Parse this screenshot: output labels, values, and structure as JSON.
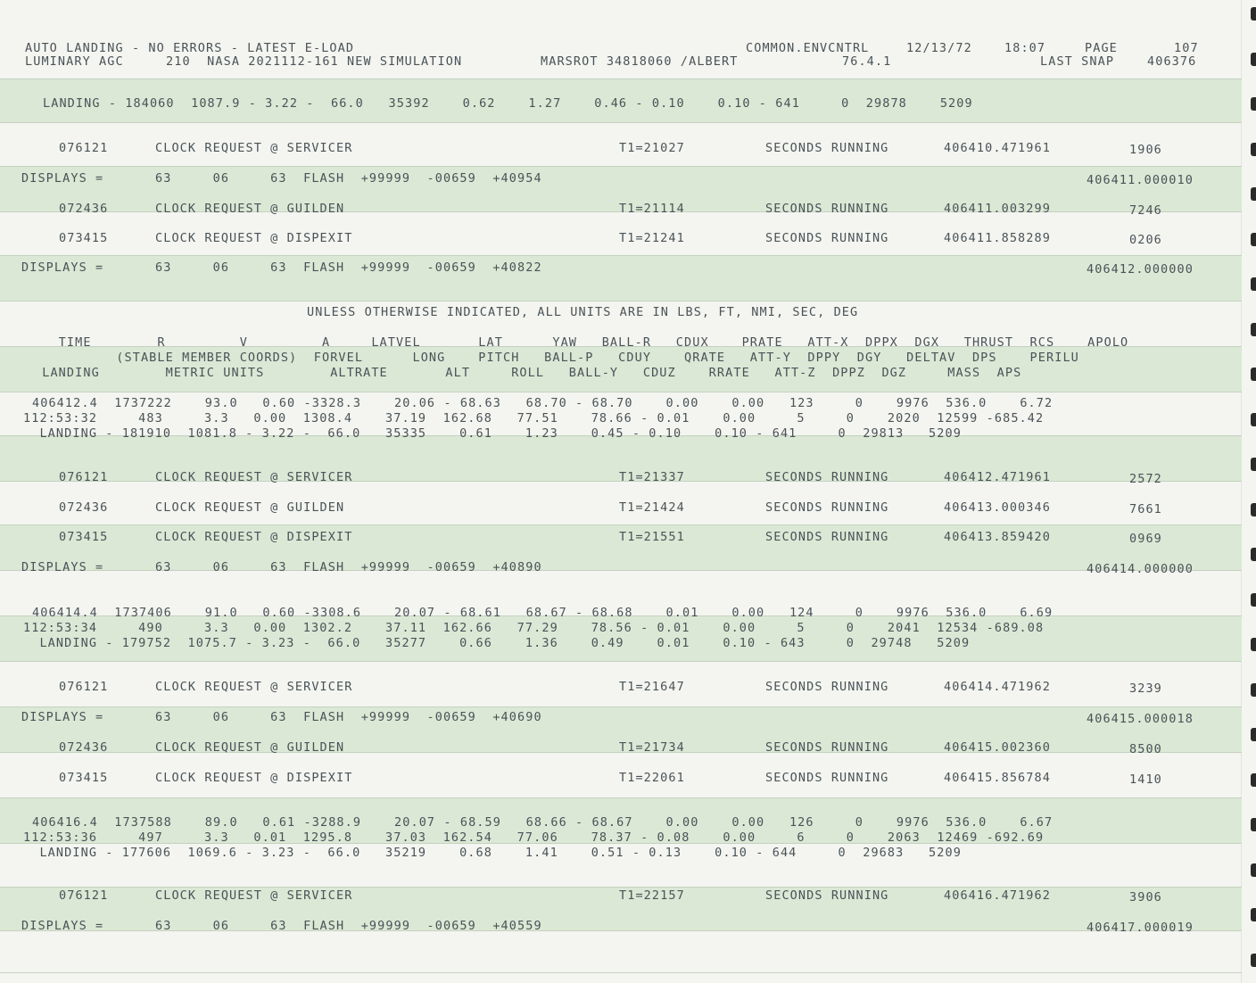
{
  "header": {
    "line1_left": "AUTO LANDING - NO ERRORS - LATEST E-LOAD",
    "line1_right": "COMMON.ENVCNTRL",
    "date": "12/13/72",
    "time": "18:07",
    "page_label": "PAGE",
    "page_no": "107",
    "line2_left": "LUMINARY AGC",
    "line2_mid": "210  NASA 2021112-161 NEW SIMULATION",
    "line2_mid2": "MARSROT 34818060 /ALBERT",
    "version": "76.4.1",
    "snap_label": "LAST SNAP",
    "snap_no": "406376"
  },
  "landing_top": "LANDING - 184060  1087.9 - 3.22 -  66.0   35392    0.62    1.27    0.46 - 0.10    0.10 - 641     0  29878    5209",
  "block1": [
    {
      "id": "076121",
      "text": "CLOCK REQUEST @ SERVICER",
      "t1": "T1=21027",
      "running": "SECONDS RUNNING",
      "sec": "406410.471961",
      "num": "1906"
    },
    {
      "type": "displays",
      "label": "DISPLAYS =",
      "vals": "63     06     63  FLASH  +99999  -00659  +40954",
      "end": "406411.000010"
    },
    {
      "id": "072436",
      "text": "CLOCK REQUEST @ GUILDEN",
      "t1": "T1=21114",
      "running": "SECONDS RUNNING",
      "sec": "406411.003299",
      "num": "7246"
    },
    {
      "id": "073415",
      "text": "CLOCK REQUEST @ DISPEXIT",
      "t1": "T1=21241",
      "running": "SECONDS RUNNING",
      "sec": "406411.858289",
      "num": "0206"
    },
    {
      "type": "displays",
      "label": "DISPLAYS =",
      "vals": "63     06     63  FLASH  +99999  -00659  +40822",
      "end": "406412.000000"
    }
  ],
  "units_note": "UNLESS OTHERWISE INDICATED, ALL UNITS ARE IN LBS, FT, NMI, SEC, DEG",
  "col_headers": [
    "   TIME        R         V         A     LATVEL       LAT      YAW   BALL-R   CDUX    PRATE   ATT-X  DPPX  DGX   THRUST  RCS    APOLO",
    "          (STABLE MEMBER COORDS)  FORVEL      LONG    PITCH   BALL-P   CDUY    QRATE   ATT-Y  DPPY  DGY   DELTAV  DPS    PERILU",
    " LANDING        METRIC UNITS        ALTRATE       ALT     ROLL   BALL-Y   CDUZ    RRATE   ATT-Z  DPPZ  DGZ     MASS  APS"
  ],
  "state1": [
    "406412.4  1737222    93.0   0.60 -3328.3    20.06 - 68.63   68.70 - 68.70    0.00    0.00   123     0    9976  536.0    6.72",
    "112:53:32     483     3.3   0.00  1308.4    37.19  162.68   77.51    78.66 - 0.01    0.00     5     0    2020  12599 -685.42",
    "  LANDING - 181910  1081.8 - 3.22 -  66.0   35335    0.61    1.23    0.45 - 0.10    0.10 - 641     0  29813   5209"
  ],
  "block2": [
    {
      "id": "076121",
      "text": "CLOCK REQUEST @ SERVICER",
      "t1": "T1=21337",
      "running": "SECONDS RUNNING",
      "sec": "406412.471961",
      "num": "2572"
    },
    {
      "id": "072436",
      "text": "CLOCK REQUEST @ GUILDEN",
      "t1": "T1=21424",
      "running": "SECONDS RUNNING",
      "sec": "406413.000346",
      "num": "7661"
    },
    {
      "id": "073415",
      "text": "CLOCK REQUEST @ DISPEXIT",
      "t1": "T1=21551",
      "running": "SECONDS RUNNING",
      "sec": "406413.859420",
      "num": "0969"
    },
    {
      "type": "displays",
      "label": "DISPLAYS =",
      "vals": "63     06     63  FLASH  +99999  -00659  +40890",
      "end": "406414.000000"
    }
  ],
  "state2": [
    "406414.4  1737406    91.0   0.60 -3308.6    20.07 - 68.61   68.67 - 68.68    0.01    0.00   124     0    9976  536.0    6.69",
    "112:53:34     490     3.3   0.00  1302.2    37.11  162.66   77.29    78.56 - 0.01    0.00     5     0    2041  12534 -689.08",
    "  LANDING - 179752  1075.7 - 3.23 -  66.0   35277    0.66    1.36    0.49    0.01    0.10 - 643     0  29748   5209"
  ],
  "block3": [
    {
      "id": "076121",
      "text": "CLOCK REQUEST @ SERVICER",
      "t1": "T1=21647",
      "running": "SECONDS RUNNING",
      "sec": "406414.471962",
      "num": "3239"
    },
    {
      "type": "displays",
      "label": "DISPLAYS =",
      "vals": "63     06     63  FLASH  +99999  -00659  +40690",
      "end": "406415.000018"
    },
    {
      "id": "072436",
      "text": "CLOCK REQUEST @ GUILDEN",
      "t1": "T1=21734",
      "running": "SECONDS RUNNING",
      "sec": "406415.002360",
      "num": "8500"
    },
    {
      "id": "073415",
      "text": "CLOCK REQUEST @ DISPEXIT",
      "t1": "T1=22061",
      "running": "SECONDS RUNNING",
      "sec": "406415.856784",
      "num": "1410"
    }
  ],
  "state3": [
    "406416.4  1737588    89.0   0.61 -3288.9    20.07 - 68.59   68.66 - 68.67    0.00    0.00   126     0    9976  536.0    6.67",
    "112:53:36     497     3.3   0.01  1295.8    37.03  162.54   77.06    78.37 - 0.08    0.00     6     0    2063  12469 -692.69",
    "  LANDING - 177606  1069.6 - 3.23 -  66.0   35219    0.68    1.41    0.51 - 0.13    0.10 - 644     0  29683   5209"
  ],
  "block4": [
    {
      "id": "076121",
      "text": "CLOCK REQUEST @ SERVICER",
      "t1": "T1=22157",
      "running": "SECONDS RUNNING",
      "sec": "406416.471962",
      "num": "3906"
    },
    {
      "type": "displays",
      "label": "DISPLAYS =",
      "vals": "63     06     63  FLASH  +99999  -00659  +40559",
      "end": "406417.000019"
    }
  ]
}
